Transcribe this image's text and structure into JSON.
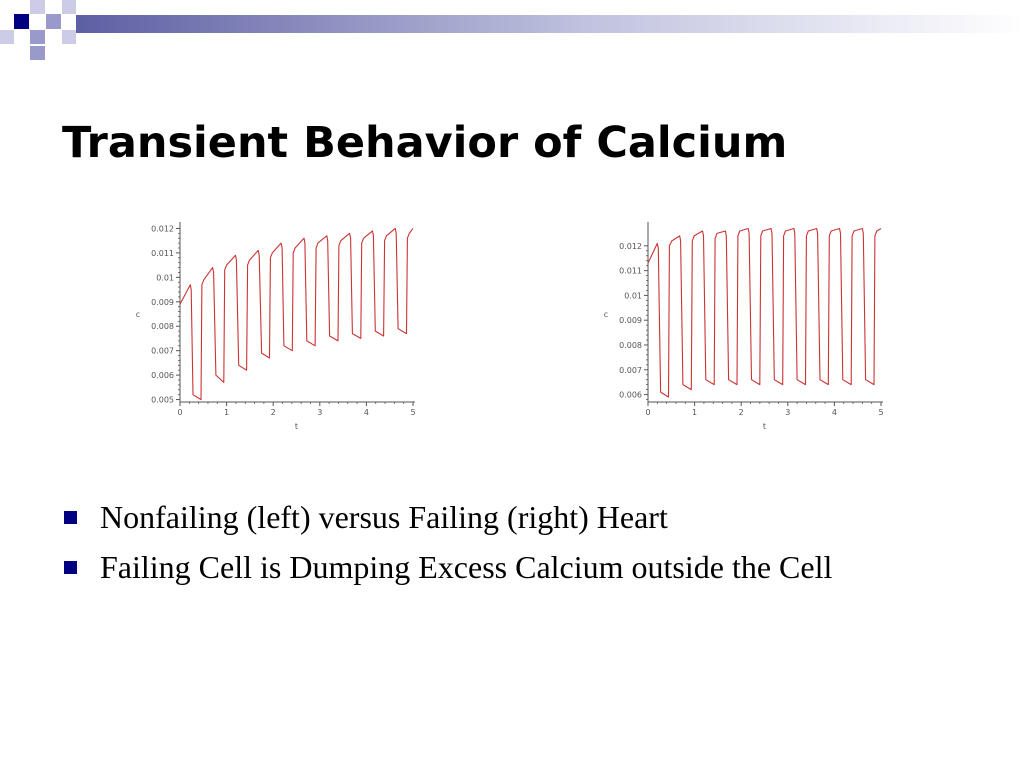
{
  "slide": {
    "title": "Transient Behavior of Calcium",
    "bullets": [
      "Nonfailing (left) versus Failing (right) Heart",
      "Failing Cell is Dumping Excess Calcium outside the Cell"
    ]
  },
  "colors": {
    "series": "#cc3333",
    "axis": "#555555",
    "bullet": "#000080",
    "decor_dark": "#000080",
    "decor_light": "#9999cc"
  },
  "icons": {
    "bullet": "navy-square-bullet"
  },
  "chart_data": [
    {
      "type": "line",
      "title": "",
      "xlabel": "t",
      "ylabel": "c",
      "xlim": [
        0,
        5
      ],
      "ylim": [
        0.0049,
        0.0121
      ],
      "xticks": [
        0,
        1,
        2,
        3,
        4,
        5
      ],
      "ytick_labels": [
        "0.012",
        "0.011",
        "0.01",
        "0.009",
        "0.008",
        "0.007",
        "0.006",
        "0.005"
      ],
      "grid": false,
      "series": [
        {
          "x": [
            0,
            0.22,
            0.24,
            0.28,
            0.45,
            0.47,
            0.51,
            0.7,
            0.72,
            0.77,
            0.94,
            0.96,
            1.0,
            1.19,
            1.21,
            1.26,
            1.43,
            1.45,
            1.49,
            1.68,
            1.7,
            1.75,
            1.92,
            1.94,
            1.98,
            2.17,
            2.19,
            2.23,
            2.41,
            2.43,
            2.47,
            2.66,
            2.68,
            2.72,
            2.9,
            2.92,
            2.96,
            3.15,
            3.17,
            3.21,
            3.39,
            3.41,
            3.45,
            3.64,
            3.66,
            3.7,
            3.88,
            3.9,
            3.94,
            4.13,
            4.15,
            4.19,
            4.37,
            4.39,
            4.43,
            4.62,
            4.64,
            4.68,
            4.86,
            4.88,
            4.92,
            5.0
          ],
          "y": [
            0.0089,
            0.0097,
            0.0095,
            0.0052,
            0.005,
            0.0097,
            0.0099,
            0.0104,
            0.0102,
            0.006,
            0.0057,
            0.0103,
            0.0105,
            0.0109,
            0.0107,
            0.0064,
            0.0062,
            0.0105,
            0.0107,
            0.0111,
            0.0109,
            0.0069,
            0.0067,
            0.0108,
            0.011,
            0.0114,
            0.0112,
            0.0072,
            0.007,
            0.011,
            0.0112,
            0.0116,
            0.0114,
            0.0074,
            0.0072,
            0.0112,
            0.0114,
            0.0117,
            0.0115,
            0.0076,
            0.0074,
            0.0113,
            0.0115,
            0.0118,
            0.0116,
            0.0077,
            0.0075,
            0.0114,
            0.0116,
            0.0119,
            0.0117,
            0.0078,
            0.0076,
            0.0115,
            0.0117,
            0.012,
            0.0118,
            0.0079,
            0.0077,
            0.0116,
            0.0118,
            0.012
          ]
        }
      ]
    },
    {
      "type": "line",
      "title": "",
      "xlabel": "t",
      "ylabel": "c",
      "xlim": [
        0,
        5
      ],
      "ylim": [
        0.0057,
        0.0128
      ],
      "xticks": [
        0,
        1,
        2,
        3,
        4,
        5
      ],
      "ytick_labels": [
        "0.012",
        "0.011",
        "0.01",
        "0.009",
        "0.008",
        "0.007",
        "0.006"
      ],
      "grid": false,
      "series": [
        {
          "x": [
            0,
            0.2,
            0.22,
            0.27,
            0.44,
            0.46,
            0.51,
            0.68,
            0.7,
            0.75,
            0.93,
            0.95,
            0.99,
            1.17,
            1.19,
            1.24,
            1.42,
            1.44,
            1.48,
            1.66,
            1.68,
            1.73,
            1.91,
            1.93,
            1.97,
            2.15,
            2.17,
            2.22,
            2.4,
            2.42,
            2.46,
            2.64,
            2.66,
            2.71,
            2.89,
            2.91,
            2.95,
            3.13,
            3.15,
            3.2,
            3.38,
            3.4,
            3.44,
            3.62,
            3.64,
            3.69,
            3.87,
            3.89,
            3.93,
            4.11,
            4.13,
            4.18,
            4.36,
            4.38,
            4.42,
            4.6,
            4.62,
            4.67,
            4.85,
            4.87,
            4.91,
            5.0
          ],
          "y": [
            0.0113,
            0.0121,
            0.0119,
            0.0061,
            0.0059,
            0.012,
            0.0122,
            0.0124,
            0.0122,
            0.0064,
            0.0062,
            0.0122,
            0.0124,
            0.0126,
            0.0124,
            0.0066,
            0.0064,
            0.0123,
            0.0125,
            0.0126,
            0.0124,
            0.0066,
            0.0064,
            0.0124,
            0.0126,
            0.0127,
            0.0125,
            0.0066,
            0.0064,
            0.0124,
            0.0126,
            0.0127,
            0.0125,
            0.0066,
            0.0064,
            0.0124,
            0.0126,
            0.0127,
            0.0125,
            0.0066,
            0.0064,
            0.0124,
            0.0126,
            0.0127,
            0.0125,
            0.0066,
            0.0064,
            0.0124,
            0.0126,
            0.0127,
            0.0125,
            0.0066,
            0.0064,
            0.0124,
            0.0126,
            0.0127,
            0.0125,
            0.0066,
            0.0064,
            0.0124,
            0.0126,
            0.0127
          ]
        }
      ]
    }
  ]
}
